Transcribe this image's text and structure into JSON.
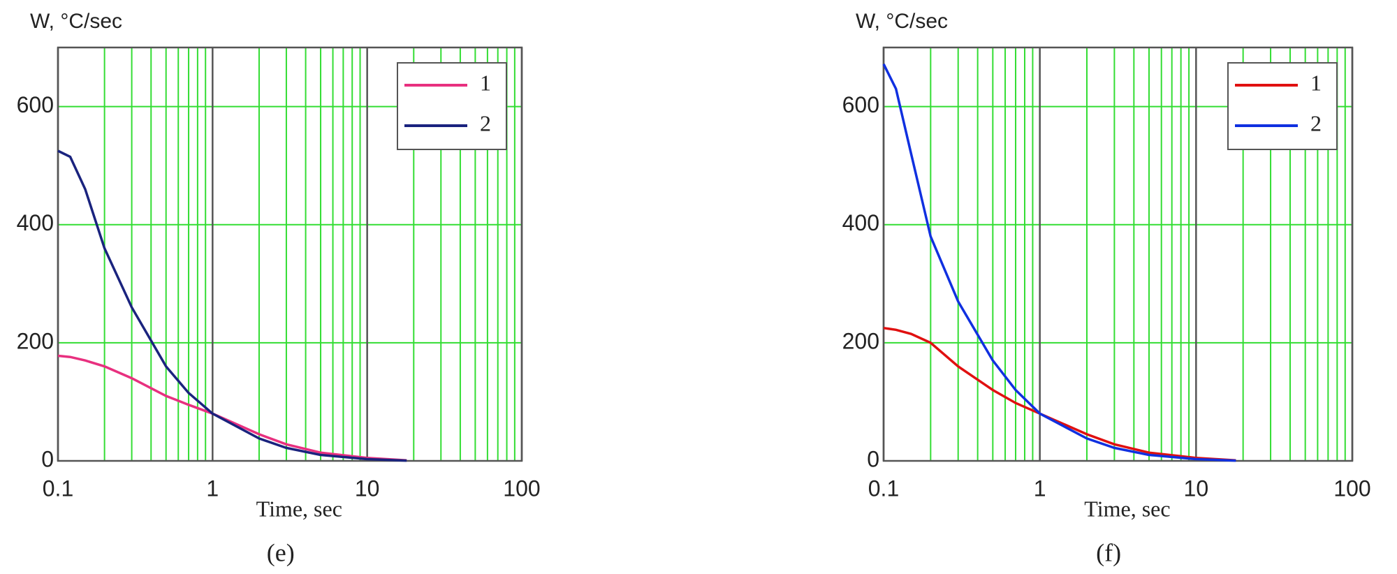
{
  "chart_data": [
    {
      "type": "line",
      "ylabel": "W, °C/sec",
      "xlabel": "Time, sec",
      "caption": "(e)",
      "xscale": "log",
      "xlim": [
        0.1,
        100
      ],
      "xticks": [
        0.1,
        1,
        10,
        100
      ],
      "xminor": [
        0.2,
        0.3,
        0.4,
        0.5,
        0.6,
        0.7,
        0.8,
        0.9,
        2,
        3,
        4,
        5,
        6,
        7,
        8,
        9,
        20,
        30,
        40,
        50,
        60,
        70,
        80,
        90
      ],
      "ylim": [
        0,
        700
      ],
      "yticks": [
        0,
        200,
        400,
        600
      ],
      "grid": true,
      "legend": "upper right",
      "x": [
        0.1,
        0.12,
        0.15,
        0.2,
        0.3,
        0.5,
        0.7,
        1,
        2,
        3,
        5,
        10,
        18
      ],
      "series": [
        {
          "name": "1",
          "color": "#e8307f",
          "values": [
            178,
            176,
            170,
            160,
            140,
            110,
            95,
            80,
            45,
            28,
            14,
            5,
            1
          ]
        },
        {
          "name": "2",
          "color": "#1a237e",
          "values": [
            525,
            515,
            460,
            360,
            260,
            160,
            115,
            80,
            38,
            22,
            10,
            3,
            0.5
          ]
        }
      ]
    },
    {
      "type": "line",
      "ylabel": "W, °C/sec",
      "xlabel": "Time, sec",
      "caption": "(f)",
      "xscale": "log",
      "xlim": [
        0.1,
        100
      ],
      "xticks": [
        0.1,
        1,
        10,
        100
      ],
      "xminor": [
        0.2,
        0.3,
        0.4,
        0.5,
        0.6,
        0.7,
        0.8,
        0.9,
        2,
        3,
        4,
        5,
        6,
        7,
        8,
        9,
        20,
        30,
        40,
        50,
        60,
        70,
        80,
        90
      ],
      "ylim": [
        0,
        700
      ],
      "yticks": [
        0,
        200,
        400,
        600
      ],
      "grid": true,
      "legend": "upper right",
      "x": [
        0.1,
        0.12,
        0.15,
        0.2,
        0.3,
        0.5,
        0.7,
        1,
        2,
        3,
        5,
        10,
        18
      ],
      "series": [
        {
          "name": "1",
          "color": "#e01010",
          "values": [
            225,
            222,
            215,
            200,
            160,
            120,
            98,
            80,
            45,
            28,
            14,
            5,
            1
          ]
        },
        {
          "name": "2",
          "color": "#1030e0",
          "values": [
            672,
            630,
            520,
            380,
            270,
            170,
            120,
            80,
            38,
            22,
            10,
            3,
            0.5
          ]
        }
      ]
    }
  ]
}
